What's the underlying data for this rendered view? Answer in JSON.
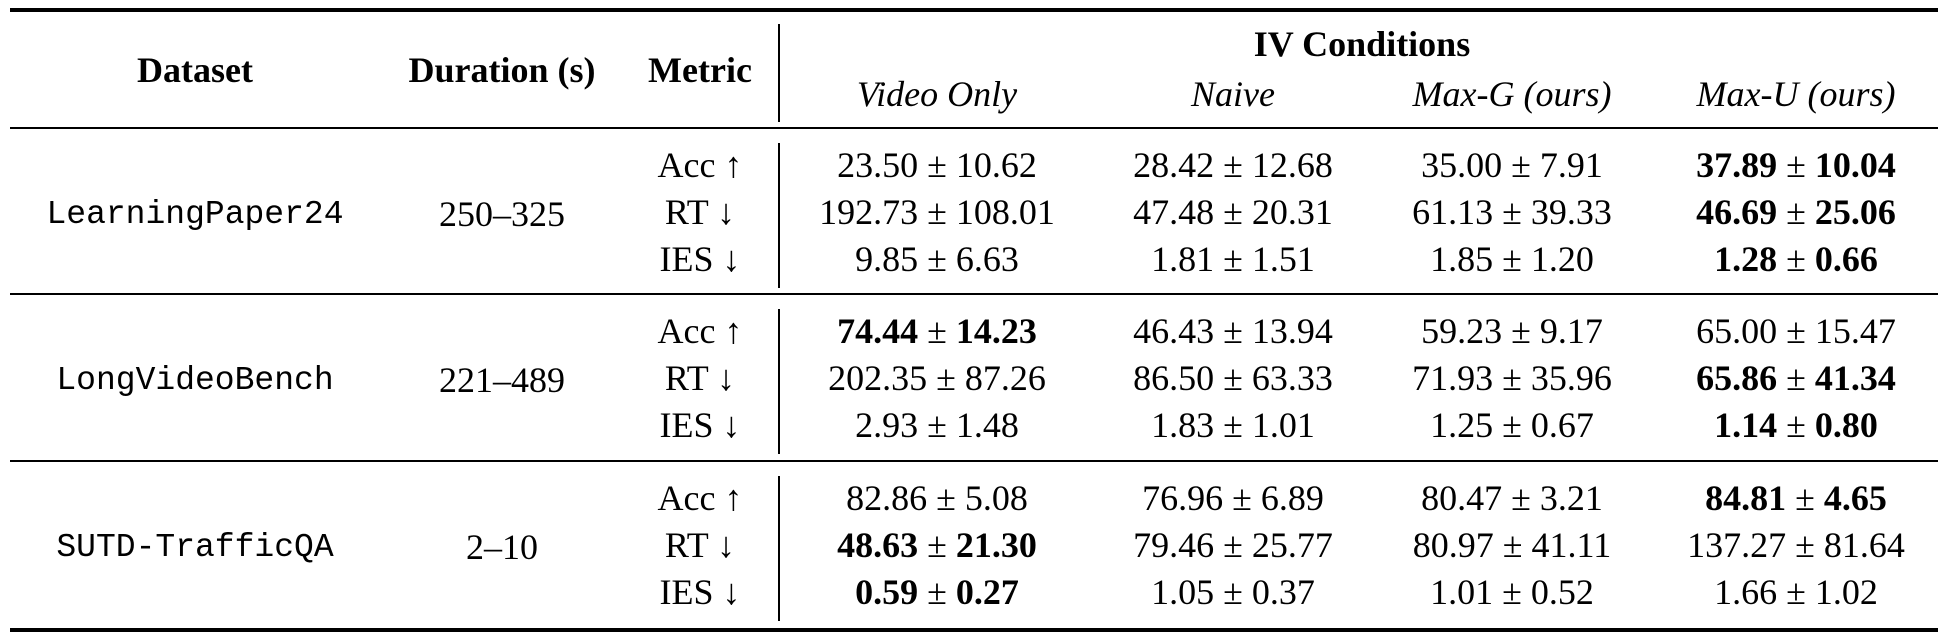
{
  "table": {
    "headers": {
      "dataset": "Dataset",
      "duration": "Duration (s)",
      "metric": "Metric",
      "iv_conditions": "IV Conditions",
      "conditions": [
        "Video Only",
        "Naive",
        "Max-G (ours)",
        "Max-U (ours)"
      ]
    },
    "groups": [
      {
        "dataset": "LearningPaper24",
        "duration": "250–325",
        "rows": [
          {
            "metric": "Acc ↑",
            "cells": [
              {
                "mean": "23.50",
                "std": "10.62",
                "bold": false
              },
              {
                "mean": "28.42",
                "std": "12.68",
                "bold": false
              },
              {
                "mean": "35.00",
                "std": "7.91",
                "bold": false
              },
              {
                "mean": "37.89",
                "std": "10.04",
                "bold": true
              }
            ]
          },
          {
            "metric": "RT ↓",
            "cells": [
              {
                "mean": "192.73",
                "std": "108.01",
                "bold": false
              },
              {
                "mean": "47.48",
                "std": "20.31",
                "bold": false
              },
              {
                "mean": "61.13",
                "std": "39.33",
                "bold": false
              },
              {
                "mean": "46.69",
                "std": "25.06",
                "bold": true
              }
            ]
          },
          {
            "metric": "IES ↓",
            "cells": [
              {
                "mean": "9.85",
                "std": "6.63",
                "bold": false
              },
              {
                "mean": "1.81",
                "std": "1.51",
                "bold": false
              },
              {
                "mean": "1.85",
                "std": "1.20",
                "bold": false
              },
              {
                "mean": "1.28",
                "std": "0.66",
                "bold": true
              }
            ]
          }
        ]
      },
      {
        "dataset": "LongVideoBench",
        "duration": "221–489",
        "rows": [
          {
            "metric": "Acc ↑",
            "cells": [
              {
                "mean": "74.44",
                "std": "14.23",
                "bold": true
              },
              {
                "mean": "46.43",
                "std": "13.94",
                "bold": false
              },
              {
                "mean": "59.23",
                "std": "9.17",
                "bold": false
              },
              {
                "mean": "65.00",
                "std": "15.47",
                "bold": false
              }
            ]
          },
          {
            "metric": "RT ↓",
            "cells": [
              {
                "mean": "202.35",
                "std": "87.26",
                "bold": false
              },
              {
                "mean": "86.50",
                "std": "63.33",
                "bold": false
              },
              {
                "mean": "71.93",
                "std": "35.96",
                "bold": false
              },
              {
                "mean": "65.86",
                "std": "41.34",
                "bold": true
              }
            ]
          },
          {
            "metric": "IES ↓",
            "cells": [
              {
                "mean": "2.93",
                "std": "1.48",
                "bold": false
              },
              {
                "mean": "1.83",
                "std": "1.01",
                "bold": false
              },
              {
                "mean": "1.25",
                "std": "0.67",
                "bold": false
              },
              {
                "mean": "1.14",
                "std": "0.80",
                "bold": true
              }
            ]
          }
        ]
      },
      {
        "dataset": "SUTD-TrafficQA",
        "duration": "2–10",
        "rows": [
          {
            "metric": "Acc ↑",
            "cells": [
              {
                "mean": "82.86",
                "std": "5.08",
                "bold": false
              },
              {
                "mean": "76.96",
                "std": "6.89",
                "bold": false
              },
              {
                "mean": "80.47",
                "std": "3.21",
                "bold": false
              },
              {
                "mean": "84.81",
                "std": "4.65",
                "bold": true
              }
            ]
          },
          {
            "metric": "RT ↓",
            "cells": [
              {
                "mean": "48.63",
                "std": "21.30",
                "bold": true
              },
              {
                "mean": "79.46",
                "std": "25.77",
                "bold": false
              },
              {
                "mean": "80.97",
                "std": "41.11",
                "bold": false
              },
              {
                "mean": "137.27",
                "std": "81.64",
                "bold": false
              }
            ]
          },
          {
            "metric": "IES ↓",
            "cells": [
              {
                "mean": "0.59",
                "std": "0.27",
                "bold": true
              },
              {
                "mean": "1.05",
                "std": "0.37",
                "bold": false
              },
              {
                "mean": "1.01",
                "std": "0.52",
                "bold": false
              },
              {
                "mean": "1.66",
                "std": "1.02",
                "bold": false
              }
            ]
          }
        ]
      }
    ]
  }
}
